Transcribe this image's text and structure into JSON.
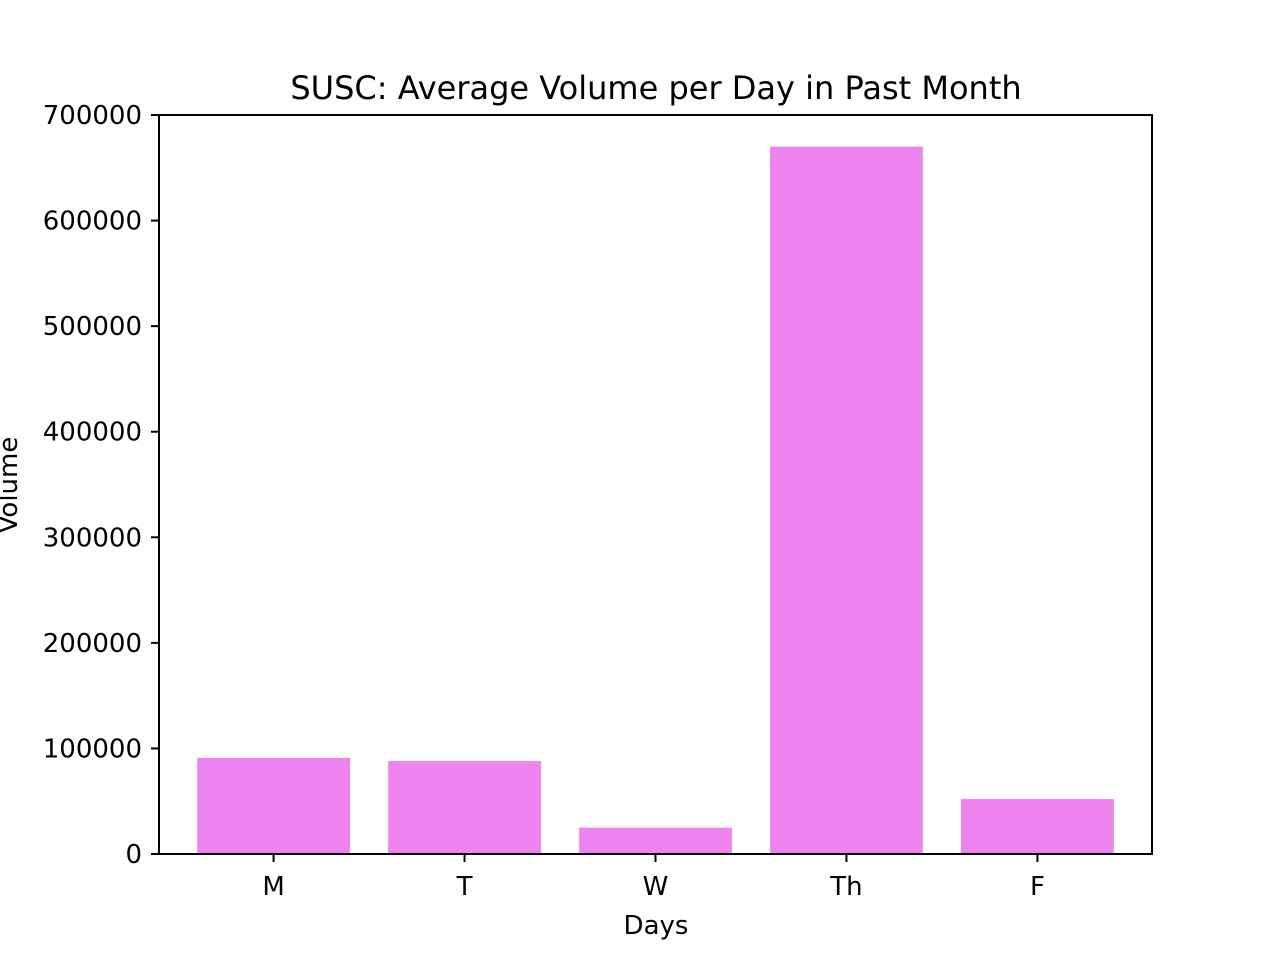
{
  "chart_data": {
    "type": "bar",
    "title": "SUSC: Average Volume per Day in Past Month",
    "xlabel": "Days",
    "ylabel": "Volume",
    "categories": [
      "M",
      "T",
      "W",
      "Th",
      "F"
    ],
    "values": [
      91000,
      88000,
      25000,
      670000,
      52000
    ],
    "ylim": [
      0,
      700000
    ],
    "yticks": [
      0,
      100000,
      200000,
      300000,
      400000,
      500000,
      600000,
      700000
    ],
    "ytick_labels": [
      "0",
      "100000",
      "200000",
      "300000",
      "400000",
      "500000",
      "600000",
      "700000"
    ],
    "bar_color": "#ee82ee",
    "grid": false,
    "legend": false
  }
}
